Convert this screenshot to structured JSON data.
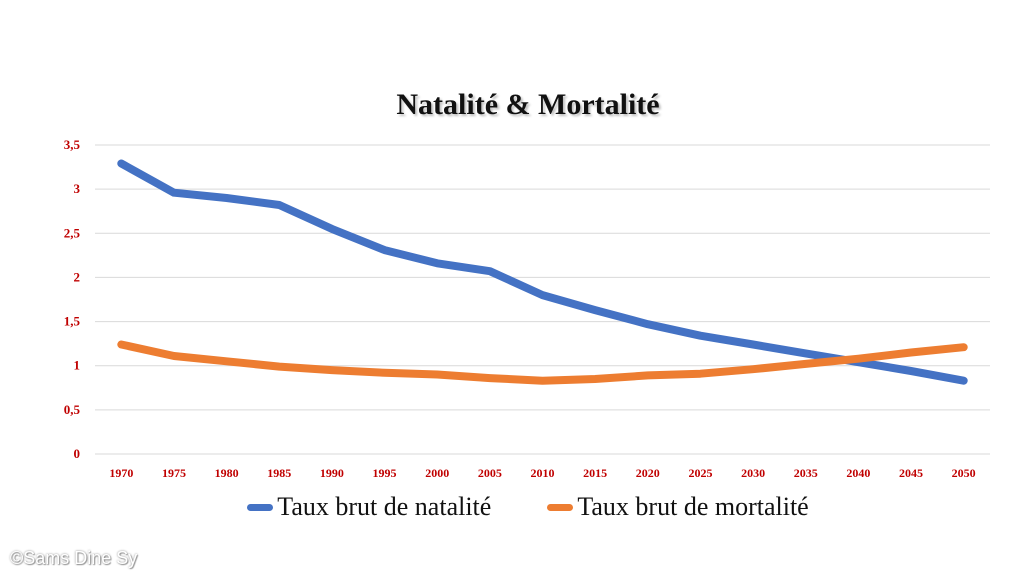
{
  "chart_data": {
    "type": "line",
    "title": "Natalité & Mortalité",
    "categories": [
      "1970",
      "1975",
      "1980",
      "1985",
      "1990",
      "1995",
      "2000",
      "2005",
      "2010",
      "2015",
      "2020",
      "2025",
      "2030",
      "2035",
      "2040",
      "2045",
      "2050"
    ],
    "series": [
      {
        "name": "Taux brut de natalité",
        "color": "#4472c4",
        "values": [
          3.29,
          2.96,
          2.9,
          2.82,
          2.55,
          2.31,
          2.16,
          2.07,
          1.8,
          1.63,
          1.47,
          1.34,
          1.24,
          1.14,
          1.04,
          0.94,
          0.83
        ]
      },
      {
        "name": "Taux brut de mortalité",
        "color": "#ed7d31",
        "values": [
          1.24,
          1.11,
          1.05,
          0.99,
          0.95,
          0.92,
          0.9,
          0.86,
          0.83,
          0.85,
          0.89,
          0.91,
          0.96,
          1.02,
          1.08,
          1.15,
          1.21
        ]
      }
    ],
    "yticks": [
      "0",
      "0,5",
      "1",
      "1,5",
      "2",
      "2,5",
      "3",
      "3,5"
    ],
    "ylim": [
      0,
      3.5
    ],
    "grid": true,
    "legend_position": "bottom"
  },
  "watermark": "©Sams Dine Sy"
}
